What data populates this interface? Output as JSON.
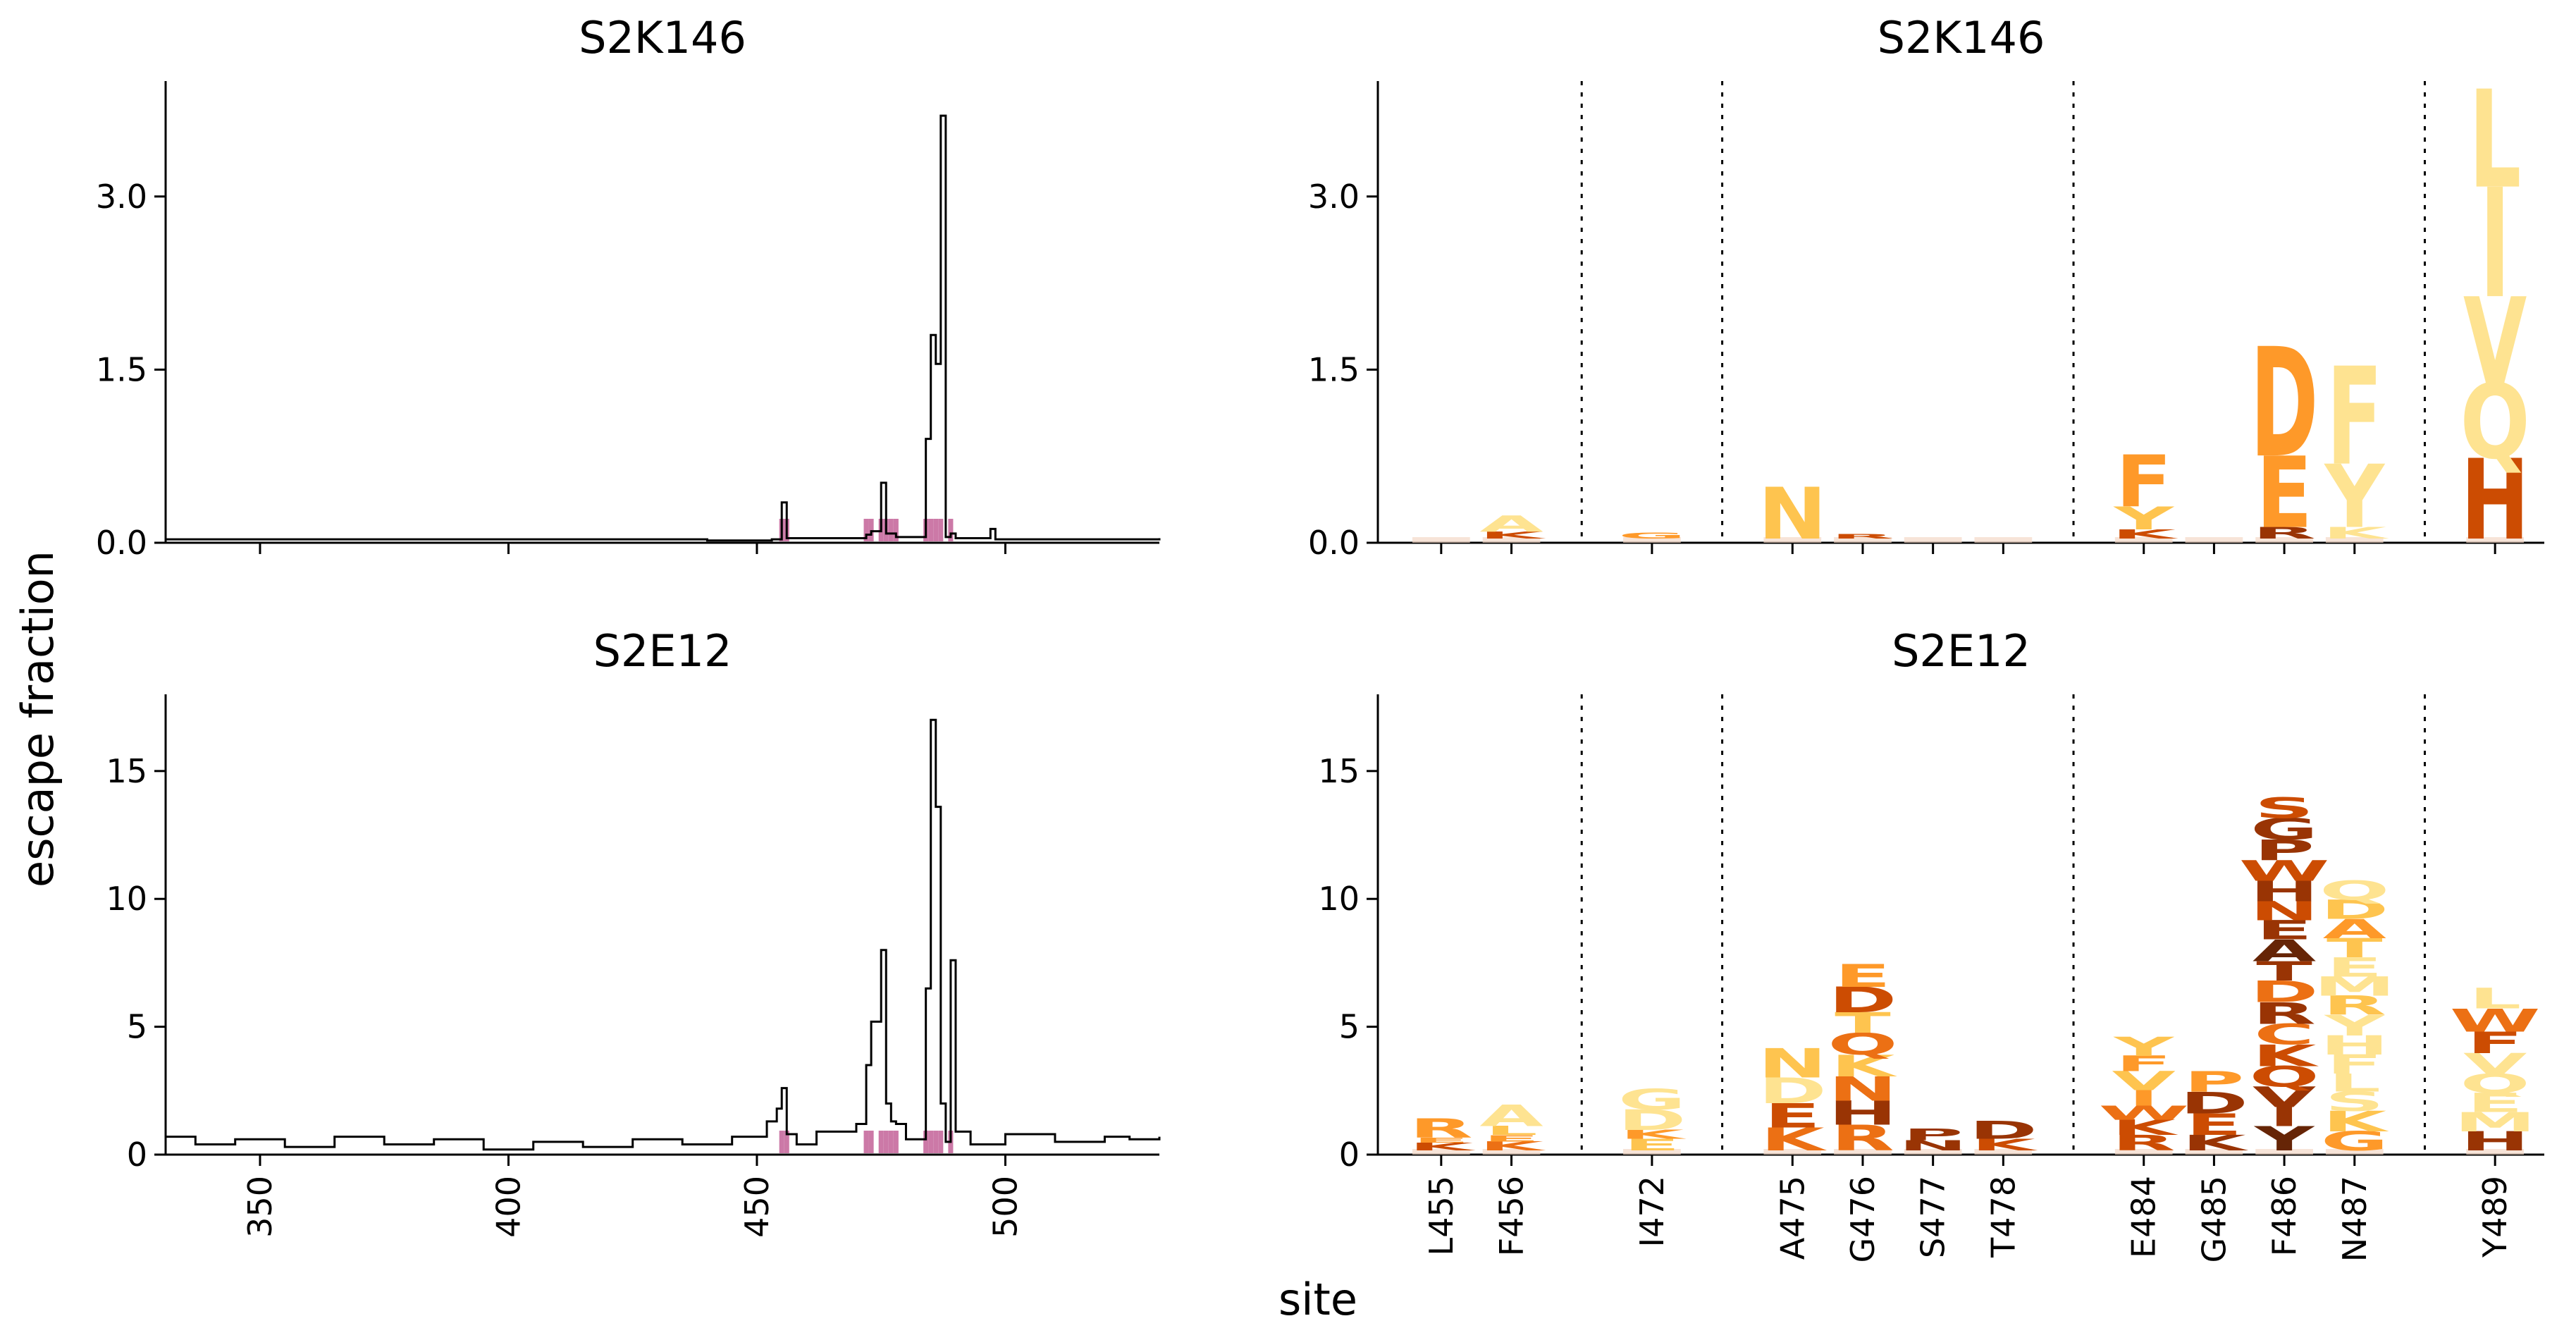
{
  "figure": {
    "ylabel": "escape fraction",
    "xlabel": "site"
  },
  "colors": {
    "line": "#000000",
    "site_marker": "#cc79a7",
    "logo_palette": [
      "#fee391",
      "#fec44f",
      "#fe9929",
      "#ec7014",
      "#cc4c02",
      "#993404",
      "#662506"
    ]
  },
  "chart_data": [
    {
      "panel": "line-top",
      "type": "line",
      "title": "S2K146",
      "xlim": [
        331,
        531
      ],
      "ylim": [
        0,
        4.0
      ],
      "yticks": [
        0.0,
        1.5,
        3.0
      ],
      "ytick_labels": [
        "0.0",
        "1.5",
        "3.0"
      ],
      "xticks": [
        350,
        400,
        450,
        500
      ],
      "x_ticklabels_shown": false,
      "highlighted_sites": [
        455,
        456,
        472,
        473,
        475,
        476,
        477,
        478,
        484,
        485,
        486,
        487,
        489
      ],
      "x": [
        331,
        440,
        453,
        455,
        456,
        470,
        472,
        473,
        475,
        476,
        478,
        484,
        485,
        486,
        487,
        488,
        489,
        490,
        497,
        498,
        531
      ],
      "values": [
        0.03,
        0.02,
        0.03,
        0.35,
        0.04,
        0.04,
        0.07,
        0.1,
        0.52,
        0.08,
        0.05,
        0.9,
        1.8,
        1.55,
        3.7,
        0.05,
        0.08,
        0.04,
        0.12,
        0.03,
        0.04
      ]
    },
    {
      "panel": "logo-top",
      "type": "logo",
      "title": "S2K146",
      "ylim": [
        0,
        4.0
      ],
      "yticks": [
        0.0,
        1.5,
        3.0
      ],
      "ytick_labels": [
        "0.0",
        "1.5",
        "3.0"
      ],
      "sites": [
        {
          "site": "L455",
          "letters": []
        },
        {
          "site": "F456",
          "letters": [
            {
              "aa": "K",
              "h": 0.06,
              "c": 4
            },
            {
              "aa": "A",
              "h": 0.14,
              "c": 0
            }
          ]
        },
        {
          "site": "I472",
          "letters": [
            {
              "aa": "G",
              "h": 0.05,
              "c": 2
            }
          ]
        },
        {
          "site": "A475",
          "letters": [
            {
              "aa": "N",
              "h": 0.45,
              "c": 1
            }
          ]
        },
        {
          "site": "G476",
          "letters": [
            {
              "aa": "R",
              "h": 0.04,
              "c": 4
            }
          ]
        },
        {
          "site": "S477",
          "letters": []
        },
        {
          "site": "T478",
          "letters": []
        },
        {
          "site": "E484",
          "letters": [
            {
              "aa": "K",
              "h": 0.08,
              "c": 4
            },
            {
              "aa": "Y",
              "h": 0.2,
              "c": 1
            },
            {
              "aa": "F",
              "h": 0.45,
              "c": 2
            }
          ]
        },
        {
          "site": "G485",
          "letters": []
        },
        {
          "site": "F486",
          "letters": [
            {
              "aa": "R",
              "h": 0.1,
              "c": 5
            },
            {
              "aa": "E",
              "h": 0.62,
              "c": 2
            },
            {
              "aa": "D",
              "h": 0.95,
              "c": 2
            }
          ]
        },
        {
          "site": "N487",
          "letters": [
            {
              "aa": "K",
              "h": 0.1,
              "c": 0
            },
            {
              "aa": "Y",
              "h": 0.55,
              "c": 0
            },
            {
              "aa": "F",
              "h": 0.85,
              "c": 0
            }
          ]
        },
        {
          "site": "Y489",
          "letters": [
            {
              "aa": "H",
              "h": 0.7,
              "c": 4
            },
            {
              "aa": "Q",
              "h": 0.65,
              "c": 0
            },
            {
              "aa": "V",
              "h": 0.75,
              "c": 0
            },
            {
              "aa": "I",
              "h": 0.95,
              "c": 0
            },
            {
              "aa": "L",
              "h": 0.85,
              "c": 0
            }
          ]
        }
      ]
    },
    {
      "panel": "line-bottom",
      "type": "line",
      "title": "S2E12",
      "xlim": [
        331,
        531
      ],
      "ylim": [
        0,
        18
      ],
      "yticks": [
        0,
        5,
        10,
        15
      ],
      "ytick_labels": [
        "0",
        "5",
        "10",
        "15"
      ],
      "xticks": [
        350,
        400,
        450,
        500
      ],
      "xtick_labels": [
        "350",
        "400",
        "450",
        "500"
      ],
      "highlighted_sites": [
        455,
        456,
        472,
        473,
        475,
        476,
        477,
        478,
        484,
        485,
        486,
        487,
        489
      ],
      "x": [
        331,
        337,
        345,
        355,
        365,
        375,
        385,
        395,
        405,
        415,
        425,
        435,
        445,
        452,
        454,
        455,
        456,
        458,
        462,
        470,
        472,
        473,
        475,
        476,
        477,
        478,
        480,
        484,
        485,
        486,
        487,
        488,
        489,
        490,
        493,
        500,
        510,
        520,
        525,
        531
      ],
      "values": [
        0.7,
        0.4,
        0.6,
        0.3,
        0.7,
        0.4,
        0.6,
        0.2,
        0.5,
        0.3,
        0.6,
        0.4,
        0.7,
        1.3,
        1.8,
        2.6,
        0.8,
        0.4,
        0.9,
        1.2,
        3.5,
        5.2,
        8.0,
        2.0,
        1.3,
        1.2,
        0.6,
        6.5,
        17.0,
        13.6,
        2.0,
        0.5,
        7.6,
        0.9,
        0.4,
        0.8,
        0.5,
        0.7,
        0.6,
        0.7
      ]
    },
    {
      "panel": "logo-bottom",
      "type": "logo",
      "title": "S2E12",
      "ylim": [
        0,
        18
      ],
      "yticks": [
        0,
        5,
        10,
        15
      ],
      "ytick_labels": [
        "0",
        "5",
        "10",
        "15"
      ],
      "sites": [
        {
          "site": "L455",
          "letters": [
            {
              "aa": "K",
              "h": 0.3,
              "c": 4
            },
            {
              "aa": "E",
              "h": 0.2,
              "c": 2
            },
            {
              "aa": "R",
              "h": 0.75,
              "c": 2
            }
          ]
        },
        {
          "site": "F456",
          "letters": [
            {
              "aa": "K",
              "h": 0.35,
              "c": 3
            },
            {
              "aa": "E",
              "h": 0.25,
              "c": 2
            },
            {
              "aa": "L",
              "h": 0.35,
              "c": 1
            },
            {
              "aa": "A",
              "h": 0.85,
              "c": 0
            }
          ]
        },
        {
          "site": "I472",
          "letters": [
            {
              "aa": "E",
              "h": 0.45,
              "c": 1
            },
            {
              "aa": "K",
              "h": 0.35,
              "c": 2
            },
            {
              "aa": "D",
              "h": 0.8,
              "c": 0
            },
            {
              "aa": "G",
              "h": 0.8,
              "c": 0
            }
          ]
        },
        {
          "site": "A475",
          "letters": [
            {
              "aa": "K",
              "h": 0.9,
              "c": 3
            },
            {
              "aa": "E",
              "h": 0.95,
              "c": 4
            },
            {
              "aa": "D",
              "h": 1.0,
              "c": 0
            },
            {
              "aa": "N",
              "h": 1.15,
              "c": 1
            }
          ]
        },
        {
          "site": "G476",
          "letters": [
            {
              "aa": "R",
              "h": 1.0,
              "c": 3
            },
            {
              "aa": "H",
              "h": 0.95,
              "c": 5
            },
            {
              "aa": "N",
              "h": 0.95,
              "c": 3
            },
            {
              "aa": "K",
              "h": 0.85,
              "c": 1
            },
            {
              "aa": "Q",
              "h": 0.85,
              "c": 3
            },
            {
              "aa": "T",
              "h": 0.8,
              "c": 1
            },
            {
              "aa": "D",
              "h": 1.0,
              "c": 4
            },
            {
              "aa": "E",
              "h": 0.9,
              "c": 2
            }
          ]
        },
        {
          "site": "S477",
          "letters": [
            {
              "aa": "N",
              "h": 0.4,
              "c": 5
            },
            {
              "aa": "P",
              "h": 0.45,
              "c": 5
            }
          ]
        },
        {
          "site": "T478",
          "letters": [
            {
              "aa": "K",
              "h": 0.45,
              "c": 4
            },
            {
              "aa": "D",
              "h": 0.7,
              "c": 5
            }
          ]
        },
        {
          "site": "E484",
          "letters": [
            {
              "aa": "R",
              "h": 0.6,
              "c": 4
            },
            {
              "aa": "K",
              "h": 0.6,
              "c": 4
            },
            {
              "aa": "W",
              "h": 0.55,
              "c": 3
            },
            {
              "aa": "I",
              "h": 0.6,
              "c": 2
            },
            {
              "aa": "V",
              "h": 0.75,
              "c": 1
            },
            {
              "aa": "F",
              "h": 0.6,
              "c": 2
            },
            {
              "aa": "Y",
              "h": 0.75,
              "c": 1
            }
          ]
        },
        {
          "site": "G485",
          "letters": [
            {
              "aa": "K",
              "h": 0.6,
              "c": 5
            },
            {
              "aa": "E",
              "h": 0.85,
              "c": 4
            },
            {
              "aa": "D",
              "h": 0.85,
              "c": 5
            },
            {
              "aa": "P",
              "h": 0.8,
              "c": 2
            }
          ]
        },
        {
          "site": "F486",
          "letters": [
            {
              "aa": "Y",
              "h": 0.95,
              "c": 6
            },
            {
              "aa": "I",
              "h": 0.75,
              "c": 5
            },
            {
              "aa": "V",
              "h": 0.8,
              "c": 5
            },
            {
              "aa": "Q",
              "h": 0.8,
              "c": 4
            },
            {
              "aa": "K",
              "h": 0.85,
              "c": 4
            },
            {
              "aa": "C",
              "h": 0.8,
              "c": 3
            },
            {
              "aa": "R",
              "h": 0.85,
              "c": 5
            },
            {
              "aa": "D",
              "h": 0.85,
              "c": 3
            },
            {
              "aa": "T",
              "h": 0.75,
              "c": 5
            },
            {
              "aa": "A",
              "h": 0.85,
              "c": 6
            },
            {
              "aa": "E",
              "h": 0.75,
              "c": 5
            },
            {
              "aa": "N",
              "h": 0.75,
              "c": 4
            },
            {
              "aa": "H",
              "h": 0.8,
              "c": 5
            },
            {
              "aa": "W",
              "h": 0.8,
              "c": 4
            },
            {
              "aa": "P",
              "h": 0.8,
              "c": 5
            },
            {
              "aa": "G",
              "h": 0.85,
              "c": 5
            },
            {
              "aa": "S",
              "h": 0.8,
              "c": 4
            }
          ]
        },
        {
          "site": "N487",
          "letters": [
            {
              "aa": "G",
              "h": 0.75,
              "c": 2
            },
            {
              "aa": "K",
              "h": 0.8,
              "c": 1
            },
            {
              "aa": "S",
              "h": 0.75,
              "c": 0
            },
            {
              "aa": "L",
              "h": 0.7,
              "c": 0
            },
            {
              "aa": "F",
              "h": 0.75,
              "c": 0
            },
            {
              "aa": "H",
              "h": 0.75,
              "c": 0
            },
            {
              "aa": "Y",
              "h": 0.8,
              "c": 0
            },
            {
              "aa": "R",
              "h": 0.75,
              "c": 1
            },
            {
              "aa": "M",
              "h": 0.75,
              "c": 0
            },
            {
              "aa": "E",
              "h": 0.75,
              "c": 0
            },
            {
              "aa": "T",
              "h": 0.75,
              "c": 1
            },
            {
              "aa": "A",
              "h": 0.75,
              "c": 2
            },
            {
              "aa": "D",
              "h": 0.75,
              "c": 1
            },
            {
              "aa": "Q",
              "h": 0.75,
              "c": 0
            }
          ]
        },
        {
          "site": "Y489",
          "letters": [
            {
              "aa": "H",
              "h": 0.75,
              "c": 5
            },
            {
              "aa": "M",
              "h": 0.75,
              "c": 0
            },
            {
              "aa": "E",
              "h": 0.75,
              "c": 0
            },
            {
              "aa": "Q",
              "h": 0.75,
              "c": 0
            },
            {
              "aa": "V",
              "h": 0.8,
              "c": 0
            },
            {
              "aa": "F",
              "h": 0.85,
              "c": 4
            },
            {
              "aa": "W",
              "h": 0.9,
              "c": 3
            },
            {
              "aa": "L",
              "h": 0.8,
              "c": 0
            }
          ]
        }
      ]
    }
  ]
}
